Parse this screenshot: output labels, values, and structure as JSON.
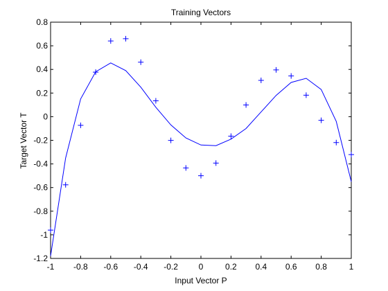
{
  "chart_data": {
    "type": "line",
    "title": "Training Vectors",
    "xlabel": "Input Vector P",
    "ylabel": "Target Vector T",
    "xlim": [
      -1,
      1
    ],
    "ylim": [
      -1.2,
      0.8
    ],
    "grid": false,
    "xticks": [
      -1,
      -0.8,
      -0.6,
      -0.4,
      -0.2,
      0,
      0.2,
      0.4,
      0.6,
      0.8,
      1
    ],
    "xtick_labels": [
      "-1",
      "-0.8",
      "-0.6",
      "-0.4",
      "-0.2",
      "0",
      "0.2",
      "0.4",
      "0.6",
      "0.8",
      "1"
    ],
    "yticks": [
      -1.2,
      -1,
      -0.8,
      -0.6,
      -0.4,
      -0.2,
      0,
      0.2,
      0.4,
      0.6,
      0.8
    ],
    "ytick_labels": [
      "-1.2",
      "-1",
      "-0.8",
      "-0.6",
      "-0.4",
      "-0.2",
      "0",
      "0.2",
      "0.4",
      "0.6",
      "0.8"
    ],
    "series": [
      {
        "type": "scatter",
        "marker": "+",
        "color": "#0000ff",
        "x": [
          -1,
          -0.9,
          -0.8,
          -0.7,
          -0.6,
          -0.5,
          -0.4,
          -0.3,
          -0.2,
          -0.1,
          0,
          0.1,
          0.2,
          0.3,
          0.4,
          0.5,
          0.6,
          0.7,
          0.8,
          0.9,
          1
        ],
        "y": [
          -0.96,
          -0.577,
          -0.073,
          0.377,
          0.641,
          0.66,
          0.461,
          0.134,
          -0.201,
          -0.434,
          -0.5,
          -0.393,
          -0.165,
          0.099,
          0.307,
          0.396,
          0.345,
          0.182,
          -0.031,
          -0.219,
          -0.321
        ]
      },
      {
        "type": "line",
        "color": "#0000ff",
        "x": [
          -1,
          -0.9,
          -0.8,
          -0.7,
          -0.6,
          -0.5,
          -0.4,
          -0.3,
          -0.2,
          -0.1,
          0,
          0.1,
          0.2,
          0.3,
          0.4,
          0.5,
          0.6,
          0.7,
          0.8,
          0.9,
          1
        ],
        "y": [
          -1.18,
          -0.35,
          0.15,
          0.38,
          0.455,
          0.39,
          0.25,
          0.08,
          -0.07,
          -0.18,
          -0.24,
          -0.245,
          -0.19,
          -0.1,
          0.04,
          0.18,
          0.29,
          0.325,
          0.23,
          -0.04,
          -0.55
        ]
      }
    ]
  }
}
